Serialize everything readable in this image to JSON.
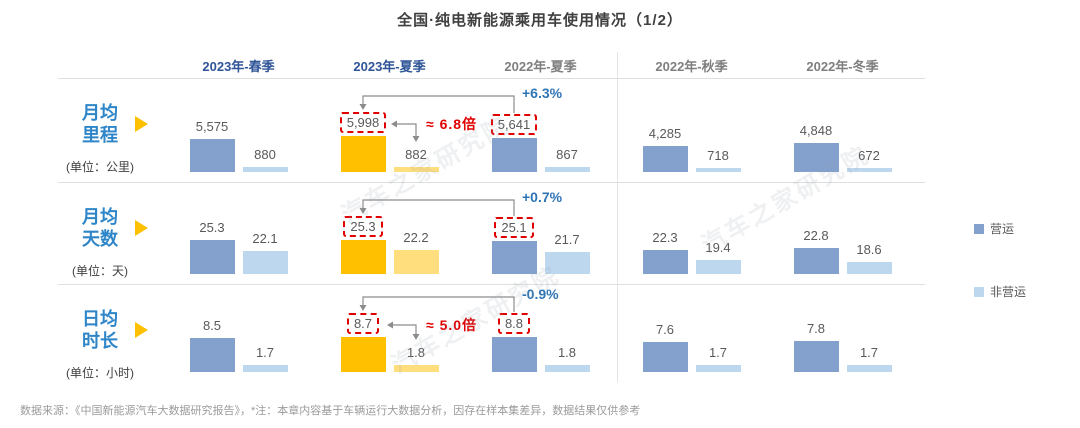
{
  "title": "全国·纯电新能源乘用车使用情况（1/2）",
  "footer": "数据来源：《中国新能源汽车大数据研究报告》，*注：本章内容基于车辆运行大数据分析，因存在样本集差异，数据结果仅供参考",
  "watermark": "汽车之家研究院",
  "legend": [
    {
      "label": "营运",
      "color": "#84A1CE"
    },
    {
      "label": "非营运",
      "color": "#BDD7EE"
    }
  ],
  "colors": {
    "operating": "#84A1CE",
    "non_operating": "#BDD7EE",
    "operating_highlight": "#FFC000",
    "non_operating_highlight": "#FFDE7D",
    "accent_red": "#E00000",
    "accent_blue": "#2E75B6",
    "header_blue": "#2F5597",
    "header_gray": "#7F7F7F",
    "metric_blue": "#2E86C8"
  },
  "chart_data": {
    "type": "bar",
    "title": "全国·纯电新能源乘用车使用情况（1/2）",
    "categories": [
      "2023年-春季",
      "2023年-夏季",
      "2022年-夏季",
      "2022年-秋季",
      "2022年-冬季"
    ],
    "category_styles": [
      "blue",
      "blue",
      "gray",
      "gray",
      "gray"
    ],
    "highlight_category_index": 1,
    "legend_entries": [
      "营运",
      "非营运"
    ],
    "legend_position": "right",
    "grid": false,
    "rows": [
      {
        "metric": "月均里程",
        "unit_label": "(单位：公里)",
        "ylim": [
          0,
          6000
        ],
        "series": [
          {
            "name": "营运",
            "values": [
              5575,
              5998,
              5641,
              4285,
              4848
            ],
            "labels": [
              "5,575",
              "5,998",
              "5,641",
              "4,285",
              "4,848"
            ]
          },
          {
            "name": "非营运",
            "values": [
              880,
              882,
              867,
              718,
              672
            ],
            "labels": [
              "880",
              "882",
              "867",
              "718",
              "672"
            ]
          }
        ],
        "boxed_value_columns": [
          1,
          2
        ],
        "annotations": {
          "yoy": "+6.3%",
          "ratio": "≈ 6.8倍"
        }
      },
      {
        "metric": "月均天数",
        "unit_label": "(单位：天)",
        "ylim": [
          15,
          26
        ],
        "series": [
          {
            "name": "营运",
            "values": [
              25.3,
              25.3,
              25.1,
              22.3,
              22.8
            ],
            "labels": [
              "25.3",
              "25.3",
              "25.1",
              "22.3",
              "22.8"
            ]
          },
          {
            "name": "非营运",
            "values": [
              22.1,
              22.2,
              21.7,
              19.4,
              18.6
            ],
            "labels": [
              "22.1",
              "22.2",
              "21.7",
              "19.4",
              "18.6"
            ]
          }
        ],
        "boxed_value_columns": [
          1,
          2
        ],
        "annotations": {
          "yoy": "+0.7%",
          "ratio": null
        }
      },
      {
        "metric": "日均时长",
        "unit_label": "(单位：小时)",
        "ylim": [
          0,
          9
        ],
        "series": [
          {
            "name": "营运",
            "values": [
              8.5,
              8.7,
              8.8,
              7.6,
              7.8
            ],
            "labels": [
              "8.5",
              "8.7",
              "8.8",
              "7.6",
              "7.8"
            ]
          },
          {
            "name": "非营运",
            "values": [
              1.7,
              1.8,
              1.8,
              1.7,
              1.7
            ],
            "labels": [
              "1.7",
              "1.8",
              "1.8",
              "1.7",
              "1.7"
            ]
          }
        ],
        "boxed_value_columns": [
          1,
          2
        ],
        "annotations": {
          "yoy": "-0.9%",
          "ratio": "≈ 5.0倍"
        }
      }
    ]
  }
}
